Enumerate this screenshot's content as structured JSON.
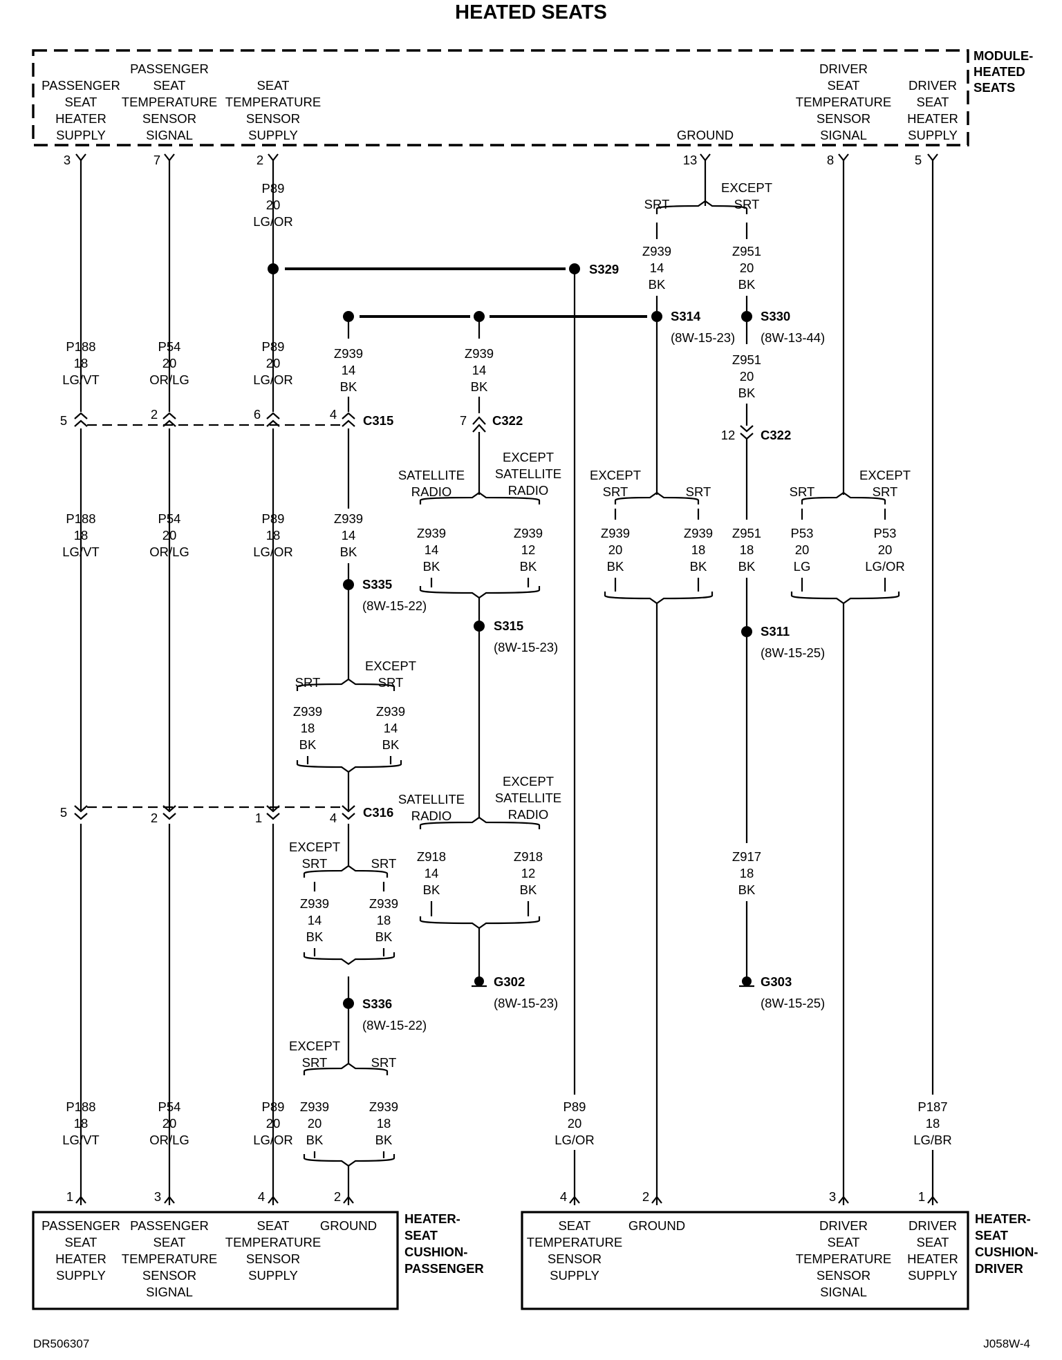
{
  "title": "HEATED SEATS",
  "footer": {
    "left": "DR506307",
    "right": "J058W-4"
  },
  "module": {
    "name": [
      "MODULE-",
      "HEATED",
      "SEATS"
    ],
    "pins": [
      {
        "lines": [
          "PASSENGER",
          "SEAT",
          "HEATER",
          "SUPPLY"
        ],
        "pin": "3"
      },
      {
        "lines": [
          "PASSENGER",
          "SEAT",
          "TEMPERATURE",
          "SENSOR",
          "SIGNAL"
        ],
        "pin": "7"
      },
      {
        "lines": [
          "SEAT",
          "TEMPERATURE",
          "SENSOR",
          "SUPPLY"
        ],
        "pin": "2"
      },
      {
        "lines": [
          "GROUND"
        ],
        "pin": "13"
      },
      {
        "lines": [
          "DRIVER",
          "SEAT",
          "TEMPERATURE",
          "SENSOR",
          "SIGNAL"
        ],
        "pin": "8"
      },
      {
        "lines": [
          "DRIVER",
          "SEAT",
          "HEATER",
          "SUPPLY"
        ],
        "pin": "5"
      }
    ]
  },
  "passenger_cushion": {
    "name": [
      "HEATER-",
      "SEAT",
      "CUSHION-",
      "PASSENGER"
    ],
    "pins": [
      {
        "lines": [
          "PASSENGER",
          "SEAT",
          "HEATER",
          "SUPPLY"
        ],
        "pin": "1"
      },
      {
        "lines": [
          "PASSENGER",
          "SEAT",
          "TEMPERATURE",
          "SENSOR",
          "SIGNAL"
        ],
        "pin": "3"
      },
      {
        "lines": [
          "SEAT",
          "TEMPERATURE",
          "SENSOR",
          "SUPPLY"
        ],
        "pin": "4"
      },
      {
        "lines": [
          "GROUND"
        ],
        "pin": "2"
      }
    ]
  },
  "driver_cushion": {
    "name": [
      "HEATER-",
      "SEAT",
      "CUSHION-",
      "DRIVER"
    ],
    "pins": [
      {
        "lines": [
          "SEAT",
          "TEMPERATURE",
          "SENSOR",
          "SUPPLY"
        ],
        "pin": "4"
      },
      {
        "lines": [
          "GROUND"
        ],
        "pin": "2"
      },
      {
        "lines": [
          "DRIVER",
          "SEAT",
          "TEMPERATURE",
          "SENSOR",
          "SIGNAL"
        ],
        "pin": "3"
      },
      {
        "lines": [
          "DRIVER",
          "SEAT",
          "HEATER",
          "SUPPLY"
        ],
        "pin": "1"
      }
    ]
  },
  "wires": {
    "p89_20": [
      "P89",
      "20",
      "LG/OR"
    ],
    "p89_18": [
      "P89",
      "18",
      "LG/OR"
    ],
    "p188": [
      "P188",
      "18",
      "LG/VT"
    ],
    "p54": [
      "P54",
      "20",
      "OR/LG"
    ],
    "p187": [
      "P187",
      "18",
      "LG/BR"
    ],
    "z939_14": [
      "Z939",
      "14",
      "BK"
    ],
    "z939_12": [
      "Z939",
      "12",
      "BK"
    ],
    "z939_18": [
      "Z939",
      "18",
      "BK"
    ],
    "z939_20": [
      "Z939",
      "20",
      "BK"
    ],
    "z951_20": [
      "Z951",
      "20",
      "BK"
    ],
    "z951_18": [
      "Z951",
      "18",
      "BK"
    ],
    "z918_14": [
      "Z918",
      "14",
      "BK"
    ],
    "z918_12": [
      "Z918",
      "12",
      "BK"
    ],
    "z917_18": [
      "Z917",
      "18",
      "BK"
    ],
    "p53_lg": [
      "P53",
      "20",
      "LG"
    ],
    "p53_lgor": [
      "P53",
      "20",
      "LG/OR"
    ]
  },
  "options": {
    "srt": "SRT",
    "except": "EXCEPT",
    "except_srt": "EXCEPT SRT",
    "sat": [
      "SATELLITE",
      "RADIO"
    ],
    "except_sat": [
      "EXCEPT",
      "SATELLITE",
      "RADIO"
    ]
  },
  "splices": {
    "s329": "S329",
    "s314": "S314",
    "s314_ref": "(8W-15-23)",
    "s330": "S330",
    "s330_ref": "(8W-13-44)",
    "s335": "S335",
    "s335_ref": "(8W-15-22)",
    "s315": "S315",
    "s315_ref": "(8W-15-23)",
    "s311": "S311",
    "s311_ref": "(8W-15-25)",
    "s336": "S336",
    "s336_ref": "(8W-15-22)"
  },
  "grounds": {
    "g302": "G302",
    "g302_ref": "(8W-15-23)",
    "g303": "G303",
    "g303_ref": "(8W-15-25)"
  },
  "connectors": {
    "c315": {
      "name": "C315",
      "pins": [
        "5",
        "2",
        "6",
        "4"
      ]
    },
    "c322a": {
      "name": "C322",
      "pin": "7"
    },
    "c322b": {
      "name": "C322",
      "pin": "12"
    },
    "c316": {
      "name": "C316",
      "pins": [
        "5",
        "2",
        "1",
        "4"
      ]
    }
  }
}
